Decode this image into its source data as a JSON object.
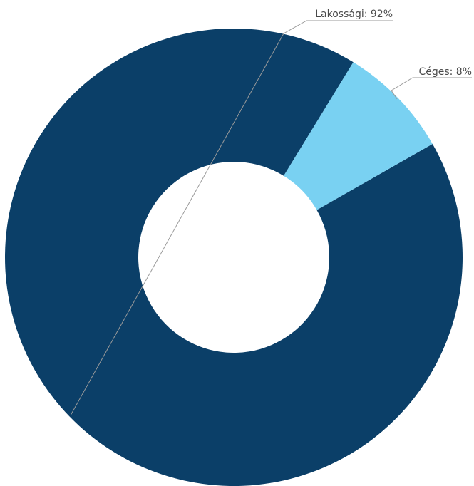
{
  "chart_data": {
    "type": "pie",
    "variant": "donut",
    "title": "",
    "legend": "none",
    "slices": [
      {
        "label": "Lakossági",
        "value": 92,
        "display": "Lakossági: 92%",
        "color": "#0b3f68"
      },
      {
        "label": "Céges",
        "value": 8,
        "display": "Céges: 8%",
        "color": "#79d1f2"
      }
    ]
  }
}
